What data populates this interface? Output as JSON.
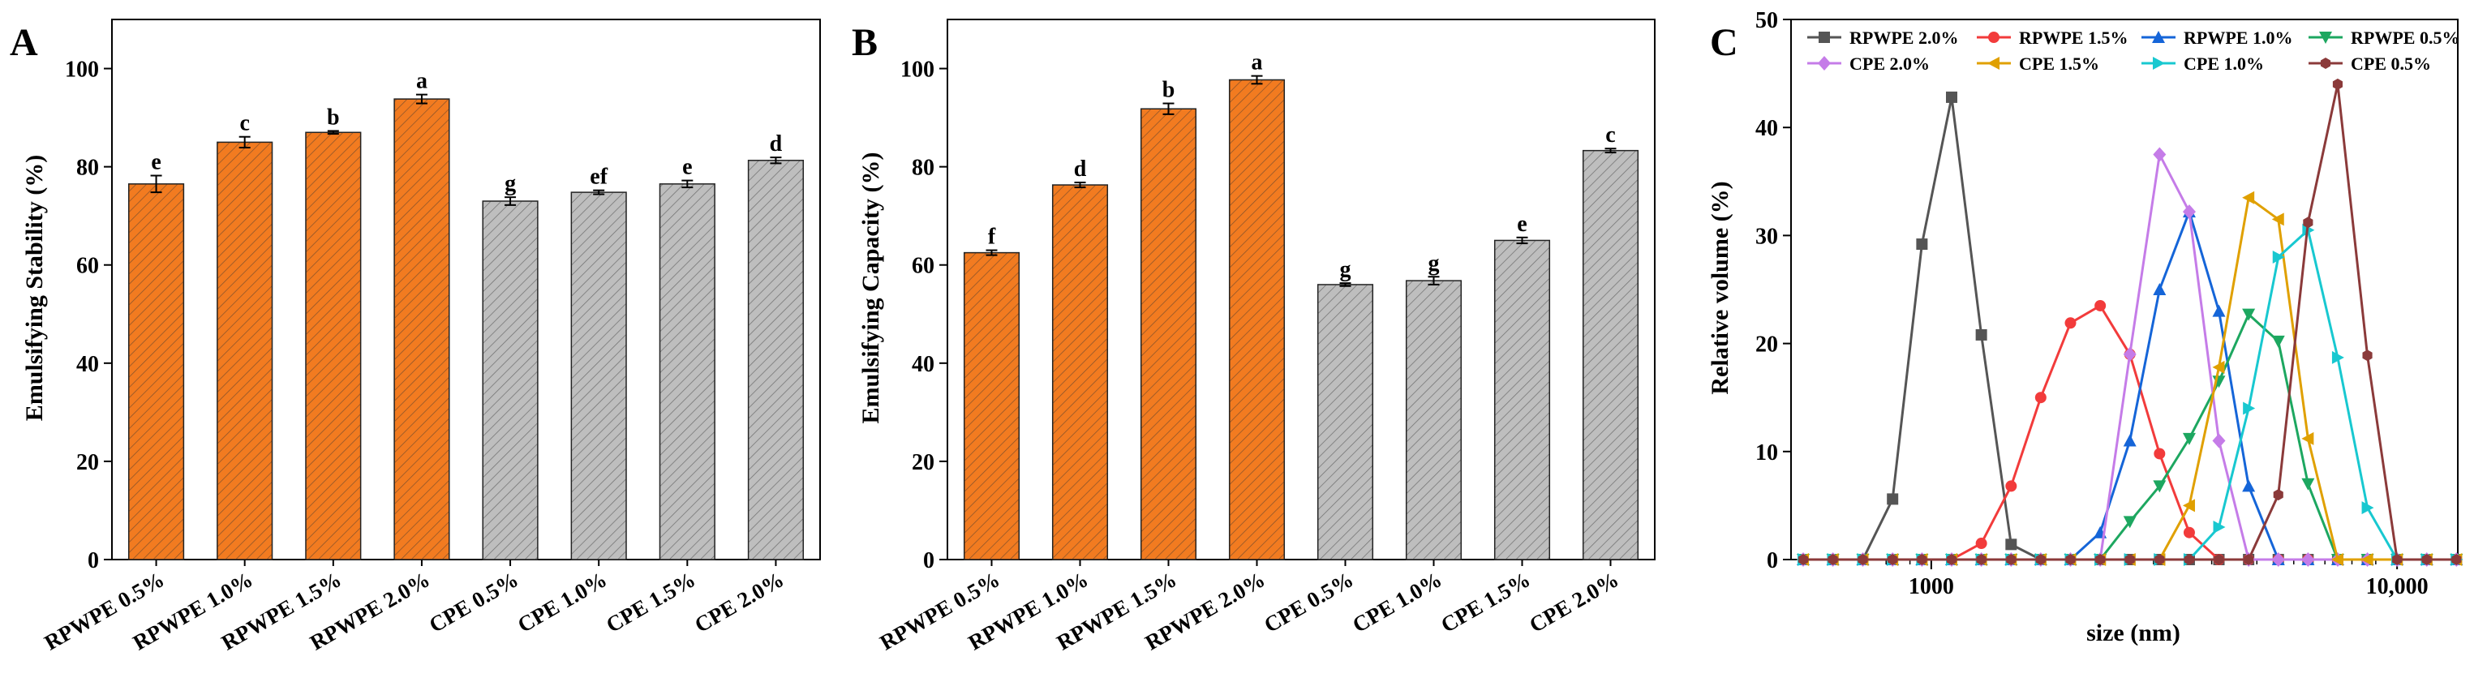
{
  "chart_data": [
    {
      "panel_label": "A",
      "type": "bar",
      "ylabel": "Emulsifying Stability (%)",
      "xlabel": "",
      "ylim": [
        0,
        110
      ],
      "yticks": [
        "0",
        "20",
        "40",
        "60",
        "80",
        "100"
      ],
      "categories": [
        "RPWPE 0.5%",
        "RPWPE 1.0%",
        "RPWPE 1.5%",
        "RPWPE 2.0%",
        "CPE 0.5%",
        "CPE 1.0%",
        "CPE 1.5%",
        "CPE 2.0%"
      ],
      "values": [
        76.5,
        85.0,
        87.0,
        93.8,
        73.0,
        74.8,
        76.5,
        81.3
      ],
      "errors": [
        1.7,
        1.1,
        0.3,
        0.9,
        0.8,
        0.4,
        0.7,
        0.6
      ],
      "letters": [
        "e",
        "c",
        "b",
        "a",
        "g",
        "ef",
        "e",
        "d"
      ],
      "bar_colors": [
        "#F27B20",
        "#F27B20",
        "#F27B20",
        "#F27B20",
        "#BEBEBE",
        "#BEBEBE",
        "#BEBEBE",
        "#BEBEBE"
      ]
    },
    {
      "panel_label": "B",
      "type": "bar",
      "ylabel": "Emulsifying Capacity (%)",
      "xlabel": "",
      "ylim": [
        0,
        110
      ],
      "yticks": [
        "0",
        "20",
        "40",
        "60",
        "80",
        "100"
      ],
      "categories": [
        "RPWPE 0.5%",
        "RPWPE 1.0%",
        "RPWPE 1.5%",
        "RPWPE 2.0%",
        "CPE 0.5%",
        "CPE 1.0%",
        "CPE 1.5%",
        "CPE 2.0%"
      ],
      "values": [
        62.5,
        76.3,
        91.8,
        97.7,
        56.0,
        56.8,
        65.0,
        83.3
      ],
      "errors": [
        0.5,
        0.5,
        1.1,
        0.8,
        0.3,
        0.8,
        0.6,
        0.4
      ],
      "letters": [
        "f",
        "d",
        "b",
        "a",
        "g",
        "g",
        "e",
        "c"
      ],
      "bar_colors": [
        "#F27B20",
        "#F27B20",
        "#F27B20",
        "#F27B20",
        "#BEBEBE",
        "#BEBEBE",
        "#BEBEBE",
        "#BEBEBE"
      ]
    },
    {
      "panel_label": "C",
      "type": "line",
      "xscale": "log",
      "xlabel": "size (nm)",
      "ylabel": "Relative volume (%)",
      "xlim": [
        500,
        13500
      ],
      "ylim": [
        0,
        50
      ],
      "yticks": [
        "0",
        "10",
        "20",
        "30",
        "40",
        "50"
      ],
      "xticks": [
        {
          "value": 1000,
          "label": "1000"
        },
        {
          "value": 10000,
          "label": "10,000"
        }
      ],
      "legend_position": "top",
      "x": [
        531,
        615,
        713,
        826,
        955,
        1106,
        1281,
        1484,
        1718,
        1990,
        2305,
        2669,
        3091,
        3580,
        4145,
        4801,
        5560,
        6439,
        7456,
        8635,
        10000,
        11580,
        13410
      ],
      "series": [
        {
          "name": "RPWPE 2.0%",
          "color": "#555555",
          "marker": "square",
          "values": [
            0,
            0,
            0,
            5.6,
            29.2,
            42.8,
            20.8,
            1.4,
            0,
            0,
            0,
            0,
            0,
            0,
            0,
            0,
            0,
            0,
            0,
            0,
            0,
            0,
            0
          ]
        },
        {
          "name": "RPWPE 1.5%",
          "color": "#F23B3B",
          "marker": "circle",
          "values": [
            0,
            0,
            0,
            0,
            0,
            0,
            1.5,
            6.8,
            15.0,
            21.9,
            23.5,
            19.0,
            9.8,
            2.5,
            0,
            0,
            0,
            0,
            0,
            0,
            0,
            0,
            0
          ]
        },
        {
          "name": "RPWPE 1.0%",
          "color": "#1565D8",
          "marker": "triangle-up",
          "values": [
            0,
            0,
            0,
            0,
            0,
            0,
            0,
            0,
            0,
            0,
            2.5,
            11.0,
            25.0,
            32.2,
            23.0,
            6.8,
            0,
            0,
            0,
            0,
            0,
            0,
            0
          ]
        },
        {
          "name": "RPWPE 0.5%",
          "color": "#1DA760",
          "marker": "triangle-down",
          "values": [
            0,
            0,
            0,
            0,
            0,
            0,
            0,
            0,
            0,
            0,
            0,
            3.5,
            6.8,
            11.2,
            16.5,
            22.7,
            20.2,
            7.0,
            0,
            0,
            0,
            0,
            0
          ]
        },
        {
          "name": "CPE 2.0%",
          "color": "#C57CE8",
          "marker": "diamond",
          "values": [
            0,
            0,
            0,
            0,
            0,
            0,
            0,
            0,
            0,
            0,
            0,
            19.0,
            37.5,
            32.2,
            11.0,
            0,
            0,
            0,
            0,
            0,
            0,
            0,
            0
          ]
        },
        {
          "name": "CPE 1.5%",
          "color": "#E0A000",
          "marker": "triangle-left",
          "values": [
            0,
            0,
            0,
            0,
            0,
            0,
            0,
            0,
            0,
            0,
            0,
            0,
            0,
            5.0,
            17.8,
            33.5,
            31.5,
            11.2,
            0,
            0,
            0,
            0,
            0
          ]
        },
        {
          "name": "CPE 1.0%",
          "color": "#18C8D0",
          "marker": "triangle-right",
          "values": [
            0,
            0,
            0,
            0,
            0,
            0,
            0,
            0,
            0,
            0,
            0,
            0,
            0,
            0,
            3.0,
            14.0,
            28.0,
            30.5,
            18.7,
            4.8,
            0,
            0,
            0
          ]
        },
        {
          "name": "CPE 0.5%",
          "color": "#8B3A3A",
          "marker": "hexagon",
          "values": [
            0,
            0,
            0,
            0,
            0,
            0,
            0,
            0,
            0,
            0,
            0,
            0,
            0,
            0,
            0,
            0,
            6.0,
            31.2,
            44.0,
            18.9,
            0,
            0,
            0
          ]
        }
      ]
    }
  ]
}
